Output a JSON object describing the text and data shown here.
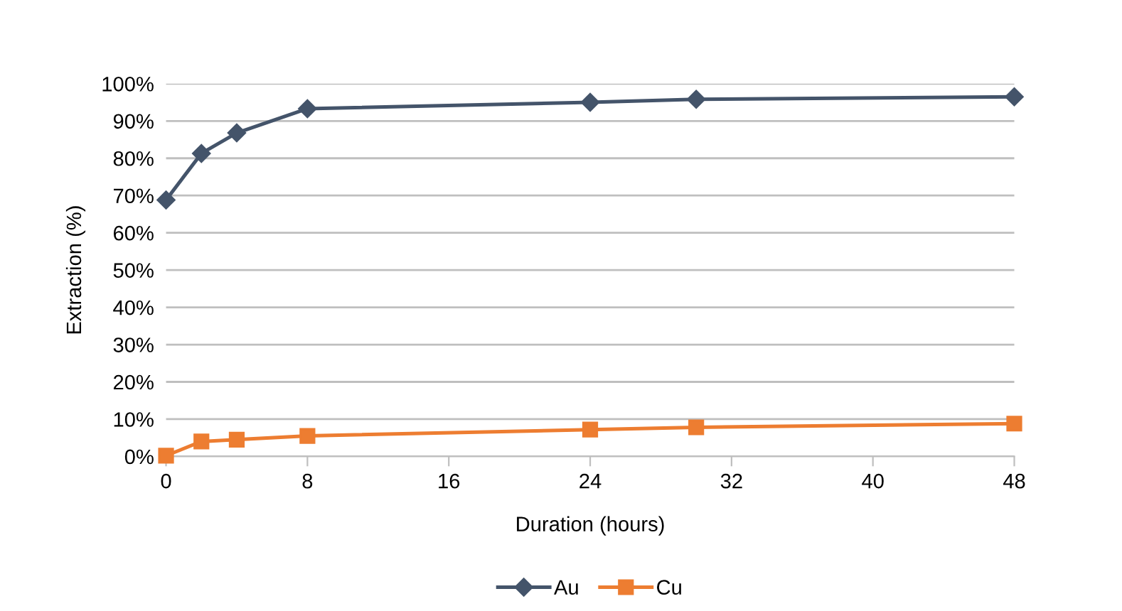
{
  "chart_data": {
    "type": "line",
    "xlabel": "Duration (hours)",
    "ylabel": "Extraction (%)",
    "x": [
      0,
      2,
      4,
      8,
      24,
      30,
      48
    ],
    "series": [
      {
        "name": "Au",
        "color": "#44546a",
        "marker": "diamond",
        "values": [
          68.8,
          81.3,
          86.8,
          93.3,
          95.0,
          95.8,
          96.5
        ]
      },
      {
        "name": "Cu",
        "color": "#ed7d31",
        "marker": "square",
        "values": [
          0.2,
          4.0,
          4.5,
          5.5,
          7.2,
          7.8,
          8.8
        ]
      }
    ],
    "xlim": [
      0,
      48
    ],
    "xticks": [
      0,
      8,
      16,
      24,
      32,
      40,
      48
    ],
    "ylim": [
      0,
      100
    ],
    "yticks": [
      {
        "value": 0,
        "label": "0%"
      },
      {
        "value": 10,
        "label": "10%"
      },
      {
        "value": 20,
        "label": "20%"
      },
      {
        "value": 30,
        "label": "30%"
      },
      {
        "value": 40,
        "label": "40%"
      },
      {
        "value": 50,
        "label": "50%"
      },
      {
        "value": 60,
        "label": "60%"
      },
      {
        "value": 70,
        "label": "70%"
      },
      {
        "value": 80,
        "label": "80%"
      },
      {
        "value": 90,
        "label": "90%"
      },
      {
        "value": 100,
        "label": "100%"
      }
    ],
    "grid": "y",
    "legend": "bottom"
  }
}
